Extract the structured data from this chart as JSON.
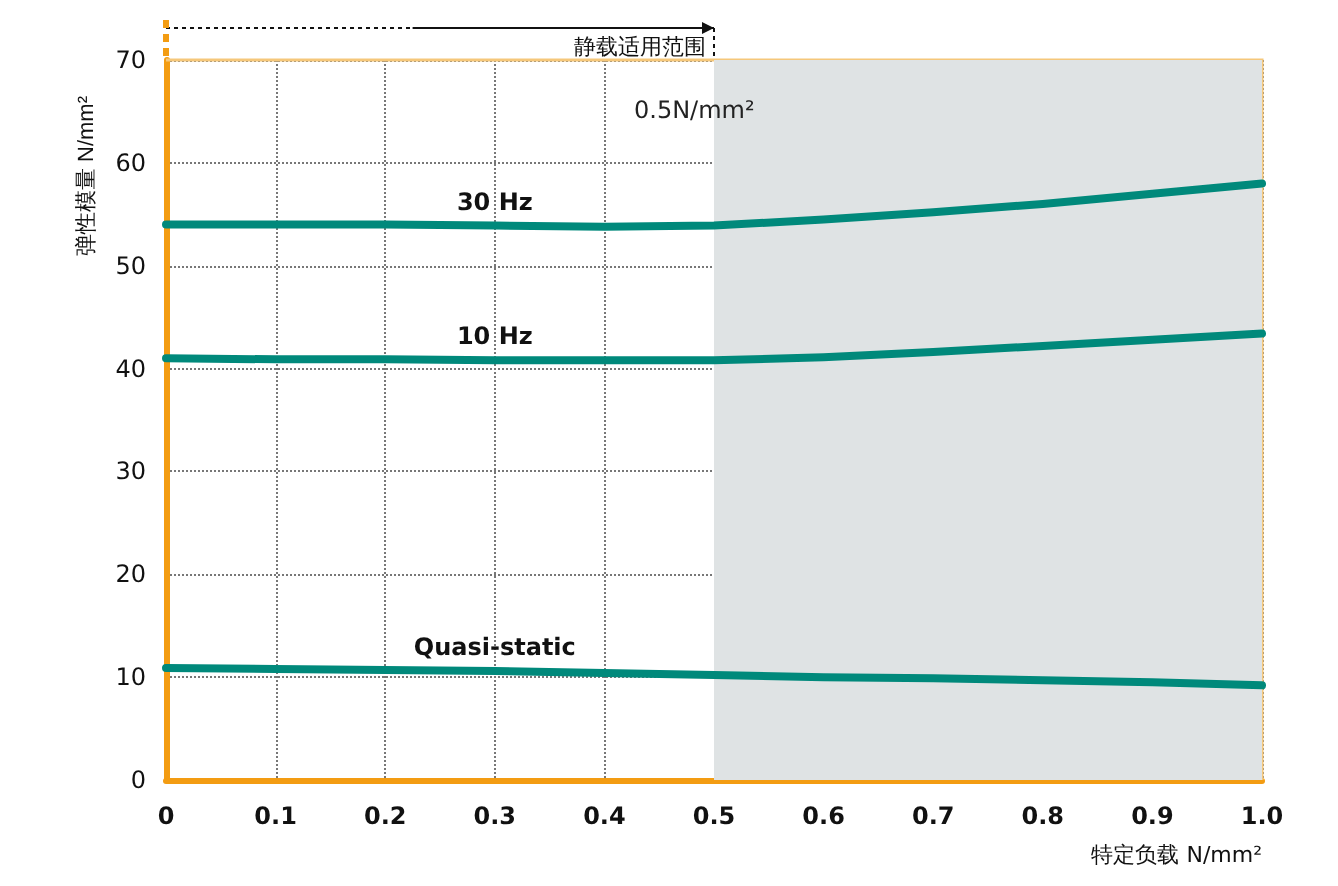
{
  "chart_data": {
    "type": "line",
    "xlabel": "特定负载 N/mm²",
    "ylabel": "弹性模量 N/mm²",
    "x": [
      0,
      0.1,
      0.2,
      0.3,
      0.4,
      0.5,
      0.6,
      0.7,
      0.8,
      0.9,
      1.0
    ],
    "series": [
      {
        "name": "30 Hz",
        "color": "#00897b",
        "values": [
          54,
          54,
          54,
          53.9,
          53.8,
          53.9,
          54.5,
          55.2,
          56,
          57,
          58
        ]
      },
      {
        "name": "10 Hz",
        "color": "#00897b",
        "values": [
          41,
          40.9,
          40.9,
          40.8,
          40.8,
          40.8,
          41.1,
          41.6,
          42.2,
          42.8,
          43.4
        ]
      },
      {
        "name": "Quasi-static",
        "color": "#00897b",
        "values": [
          10.9,
          10.8,
          10.7,
          10.6,
          10.4,
          10.2,
          10,
          9.9,
          9.7,
          9.5,
          9.2
        ]
      }
    ],
    "xlim": [
      0,
      1.0
    ],
    "xticks": [
      0,
      0.1,
      0.2,
      0.3,
      0.4,
      0.5,
      0.6,
      0.7,
      0.8,
      0.9,
      {
        "value": 1.0,
        "label": "1.0"
      }
    ],
    "ylim": [
      0,
      70
    ],
    "yticks": [
      0,
      10,
      20,
      30,
      40,
      50,
      60,
      70
    ],
    "grid": true,
    "marker": "none",
    "line_style": "solid",
    "legend": false,
    "bands": [
      {
        "axis": "x",
        "from": 0.5,
        "to": 1.0,
        "label": "0.5N/mm²",
        "color": "#dfe3e4"
      }
    ],
    "annotations": [
      "静载适用范围"
    ]
  }
}
